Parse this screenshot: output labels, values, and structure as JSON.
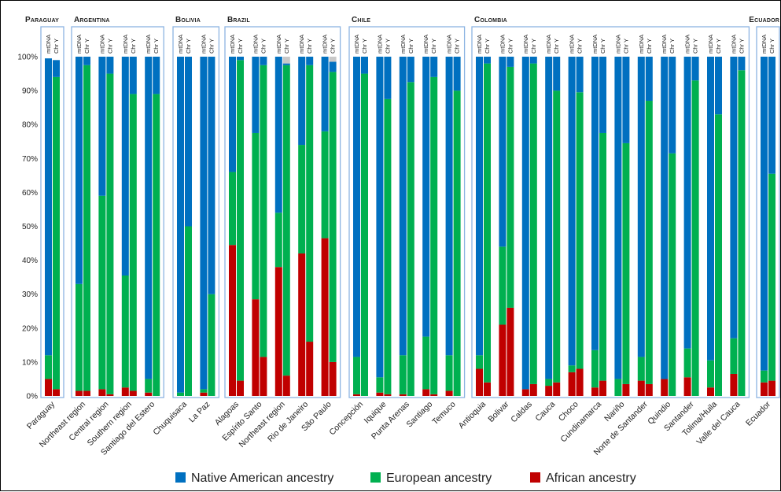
{
  "chart_data": {
    "type": "bar",
    "stacked": true,
    "y_axis": {
      "ylim": [
        0,
        100
      ],
      "ticks": [
        "0%",
        "10%",
        "20%",
        "30%",
        "40%",
        "50%",
        "60%",
        "70%",
        "80%",
        "90%",
        "100%"
      ],
      "grid": false
    },
    "bar_sublabels": [
      "mtDNA",
      "Chr Y"
    ],
    "series": [
      {
        "name": "Native American ancestry",
        "color": "#0070C0"
      },
      {
        "name": "European ancestry",
        "color": "#00B050"
      },
      {
        "name": "African ancestry",
        "color": "#C00000"
      }
    ],
    "countries": [
      {
        "label": "Paraguay",
        "regions": [
          {
            "name": "Paraguay",
            "mtDNA": {
              "african": 5,
              "european": 7,
              "native": 87.5
            },
            "chrY": {
              "african": 2,
              "european": 92,
              "native": 5
            }
          }
        ]
      },
      {
        "label": "Argentina",
        "regions": [
          {
            "name": "Northeast region",
            "mtDNA": {
              "african": 1.5,
              "european": 31.5,
              "native": 67
            },
            "chrY": {
              "african": 1.5,
              "european": 96,
              "native": 2.5
            }
          },
          {
            "name": "Central region",
            "mtDNA": {
              "african": 2,
              "european": 57,
              "native": 41
            },
            "chrY": {
              "african": 0.5,
              "european": 94.5,
              "native": 5
            }
          },
          {
            "name": "Southern region",
            "mtDNA": {
              "african": 2.5,
              "european": 33,
              "native": 64.5
            },
            "chrY": {
              "african": 1.5,
              "european": 87.5,
              "native": 11
            }
          },
          {
            "name": "Santiago del Estero",
            "mtDNA": {
              "african": 1,
              "european": 4,
              "native": 95
            },
            "chrY": {
              "african": 0,
              "european": 89,
              "native": 11
            }
          }
        ]
      },
      {
        "label": "Bolivia",
        "regions": [
          {
            "name": "Chuquisaca",
            "mtDNA": {
              "african": 0,
              "european": 1,
              "native": 99
            },
            "chrY": {
              "african": 0,
              "european": 50,
              "native": 50
            }
          },
          {
            "name": "La Paz",
            "mtDNA": {
              "african": 1,
              "european": 1,
              "native": 98
            },
            "chrY": {
              "african": 0,
              "european": 30,
              "native": 70
            }
          }
        ]
      },
      {
        "label": "Brazil",
        "regions": [
          {
            "name": "Alagoas",
            "mtDNA": {
              "african": 44.5,
              "european": 21.5,
              "native": 34
            },
            "chrY": {
              "african": 4.5,
              "european": 94.5,
              "native": 1
            }
          },
          {
            "name": "Espírito Santo",
            "mtDNA": {
              "african": 28.5,
              "european": 49,
              "native": 22.5
            },
            "chrY": {
              "african": 11.5,
              "european": 86,
              "native": 2.5
            }
          },
          {
            "name": "Northeast region",
            "mtDNA": {
              "african": 38,
              "european": 16,
              "native": 46
            },
            "chrY": {
              "african": 6,
              "european": 91.5,
              "native": 0.5,
              "unknown": 2
            }
          },
          {
            "name": "Rio de Janeiro",
            "mtDNA": {
              "african": 42,
              "european": 32,
              "native": 26
            },
            "chrY": {
              "african": 16,
              "european": 81.5,
              "native": 2.5
            }
          },
          {
            "name": "São Paulo",
            "mtDNA": {
              "african": 46.5,
              "european": 31.5,
              "native": 22
            },
            "chrY": {
              "african": 10,
              "european": 85.5,
              "native": 3,
              "unknown": 1.5
            }
          }
        ]
      },
      {
        "label": "Chile",
        "regions": [
          {
            "name": "Concepción",
            "mtDNA": {
              "african": 0.5,
              "european": 11,
              "native": 88.5
            },
            "chrY": {
              "african": 0,
              "european": 95,
              "native": 5
            }
          },
          {
            "name": "Iquique",
            "mtDNA": {
              "african": 1,
              "european": 4.5,
              "native": 94.5
            },
            "chrY": {
              "african": 0.5,
              "european": 87,
              "native": 12.5
            }
          },
          {
            "name": "Punta Arenas",
            "mtDNA": {
              "african": 0.5,
              "european": 11.5,
              "native": 88
            },
            "chrY": {
              "african": 0,
              "european": 92.5,
              "native": 7.5
            }
          },
          {
            "name": "Santiago",
            "mtDNA": {
              "african": 2,
              "european": 15.5,
              "native": 82.5
            },
            "chrY": {
              "african": 0.5,
              "european": 93.5,
              "native": 6
            }
          },
          {
            "name": "Temuco",
            "mtDNA": {
              "african": 1.5,
              "european": 10.5,
              "native": 88
            },
            "chrY": {
              "african": 0,
              "european": 90,
              "native": 10
            }
          }
        ]
      },
      {
        "label": "Colombia",
        "regions": [
          {
            "name": "Antioquia",
            "mtDNA": {
              "african": 8,
              "european": 4,
              "native": 88
            },
            "chrY": {
              "african": 4,
              "european": 94,
              "native": 2
            }
          },
          {
            "name": "Bolivar",
            "mtDNA": {
              "african": 21,
              "european": 23,
              "native": 56
            },
            "chrY": {
              "african": 26,
              "european": 71,
              "native": 3
            }
          },
          {
            "name": "Caldas",
            "mtDNA": {
              "african": 2,
              "european": 0,
              "native": 98
            },
            "chrY": {
              "african": 3.5,
              "european": 94.5,
              "native": 2
            }
          },
          {
            "name": "Cauca",
            "mtDNA": {
              "african": 3,
              "european": 2,
              "native": 95
            },
            "chrY": {
              "african": 4,
              "european": 86,
              "native": 10
            }
          },
          {
            "name": "Choco",
            "mtDNA": {
              "african": 7,
              "european": 2,
              "native": 91
            },
            "chrY": {
              "african": 8,
              "european": 81.5,
              "native": 10.5
            }
          },
          {
            "name": "Cundinamarca",
            "mtDNA": {
              "african": 2.5,
              "european": 11,
              "native": 86.5
            },
            "chrY": {
              "african": 4.5,
              "european": 73,
              "native": 22.5
            }
          },
          {
            "name": "Nariño",
            "mtDNA": {
              "african": 0,
              "european": 5,
              "native": 95
            },
            "chrY": {
              "african": 3.5,
              "european": 71,
              "native": 25.5
            }
          },
          {
            "name": "Norte de Santander",
            "mtDNA": {
              "african": 4.5,
              "european": 7,
              "native": 88.5
            },
            "chrY": {
              "african": 3.5,
              "european": 83.5,
              "native": 13
            }
          },
          {
            "name": "Quindio",
            "mtDNA": {
              "african": 5,
              "european": 0,
              "native": 95
            },
            "chrY": {
              "african": 0,
              "european": 71.5,
              "native": 28.5
            }
          },
          {
            "name": "Santander",
            "mtDNA": {
              "african": 5.5,
              "european": 8.5,
              "native": 86
            },
            "chrY": {
              "african": 0,
              "european": 93,
              "native": 7
            }
          },
          {
            "name": "Tolima/Huila",
            "mtDNA": {
              "african": 2.5,
              "european": 8,
              "native": 89.5
            },
            "chrY": {
              "african": 0,
              "european": 83,
              "native": 17
            }
          },
          {
            "name": "Valle del Cauca",
            "mtDNA": {
              "african": 6.5,
              "european": 10.5,
              "native": 83
            },
            "chrY": {
              "african": 0,
              "european": 96,
              "native": 4
            }
          }
        ]
      },
      {
        "label": "Ecuador",
        "regions": [
          {
            "name": "Ecuador",
            "mtDNA": {
              "african": 4,
              "european": 3.5,
              "native": 92.5
            },
            "chrY": {
              "african": 4.5,
              "european": 61,
              "native": 34.5
            }
          }
        ]
      }
    ],
    "colors": {
      "native": "#0070C0",
      "european": "#00B050",
      "african": "#C00000",
      "unknown": "#C8C8C8",
      "group_border": "#8DB4E2"
    }
  }
}
